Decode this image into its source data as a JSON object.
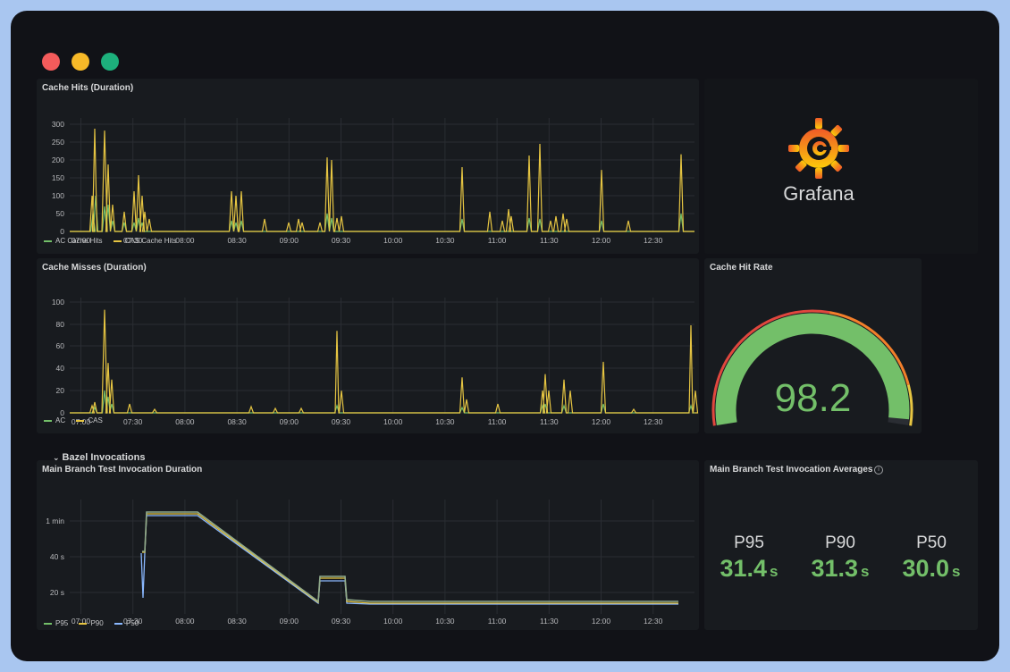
{
  "window": {
    "controls": [
      {
        "name": "close",
        "color": "#f45b5b"
      },
      {
        "name": "minimize",
        "color": "#f7b928"
      },
      {
        "name": "zoom",
        "color": "#1db07c"
      }
    ]
  },
  "colors": {
    "green": "#73bf69",
    "yellow": "#e6c542",
    "blue": "#8ab8ff",
    "grid": "#2a2d33",
    "tick": "#b8b9bc"
  },
  "time_ticks": [
    "07:00",
    "07:30",
    "08:00",
    "08:30",
    "09:00",
    "09:30",
    "10:00",
    "10:30",
    "11:00",
    "11:30",
    "12:00",
    "12:30"
  ],
  "panels": {
    "cache_hits": {
      "title": "Cache Hits (Duration)",
      "y_ticks": [
        "300",
        "250",
        "200",
        "150",
        "100",
        "50",
        "0"
      ],
      "legend": [
        {
          "label": "AC Cache Hits",
          "color": "#73bf69"
        },
        {
          "label": "CAS Cache Hits",
          "color": "#e6c542"
        }
      ]
    },
    "cache_misses": {
      "title": "Cache Misses (Duration)",
      "y_ticks": [
        "100",
        "80",
        "60",
        "40",
        "20",
        "0"
      ],
      "legend": [
        {
          "label": "AC",
          "color": "#73bf69"
        },
        {
          "label": "CAS",
          "color": "#e6c542"
        }
      ]
    },
    "logo": {
      "brand": "Grafana",
      "icon": "grafana-logo-icon"
    },
    "hit_rate": {
      "title": "Cache Hit Rate",
      "value": "98.2",
      "fraction": 0.982
    },
    "row": {
      "title": "Bazel Invocations"
    },
    "duration": {
      "title": "Main Branch Test Invocation Duration",
      "y_ticks": [
        "1 min",
        "40 s",
        "20 s"
      ],
      "legend": [
        {
          "label": "P95",
          "color": "#73bf69"
        },
        {
          "label": "P90",
          "color": "#e6c542"
        },
        {
          "label": "P50",
          "color": "#8ab8ff"
        }
      ]
    },
    "averages": {
      "title": "Main Branch Test Invocation Averages",
      "info_icon": "info-icon",
      "stats": [
        {
          "name": "P95",
          "value": "31.4",
          "unit": "s"
        },
        {
          "name": "P90",
          "value": "31.3",
          "unit": "s"
        },
        {
          "name": "P50",
          "value": "30.0",
          "unit": "s"
        }
      ]
    }
  }
}
